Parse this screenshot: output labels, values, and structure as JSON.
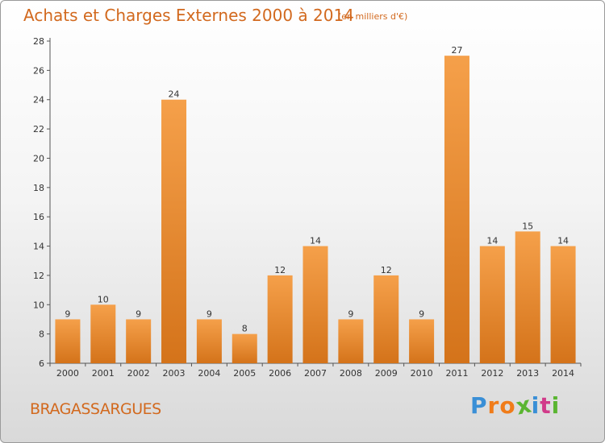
{
  "header": {
    "title": "Achats et Charges Externes 2000 à 2014",
    "subtitle": "(en milliers d'€)"
  },
  "footer": {
    "city": "BRAGASSARGUES",
    "logo_letters": [
      "P",
      "r",
      "o",
      "x",
      "i",
      "t",
      "i"
    ]
  },
  "colors": {
    "bar_light": "#f5a04a",
    "bar_dark": "#d4731a",
    "accent": "#d2691e",
    "logo": [
      "#3a8fd6",
      "#f07c1a",
      "#f07c1a",
      "#5ab531",
      "#3a8fd6",
      "#d13b8a",
      "#5ab531"
    ]
  },
  "chart_data": {
    "type": "bar",
    "title": "Achats et Charges Externes 2000 à 2014",
    "subtitle": "(en milliers d'€)",
    "categories": [
      "2000",
      "2001",
      "2002",
      "2003",
      "2004",
      "2005",
      "2006",
      "2007",
      "2008",
      "2009",
      "2010",
      "2011",
      "2012",
      "2013",
      "2014"
    ],
    "values": [
      9,
      10,
      9,
      24,
      9,
      8,
      12,
      14,
      9,
      12,
      9,
      27,
      14,
      15,
      14
    ],
    "data_labels": [
      "9",
      "10",
      "9",
      "24",
      "9",
      "8",
      "12",
      "14",
      "9",
      "12",
      "9",
      "27",
      "14",
      "15",
      "14"
    ],
    "ylim": [
      6,
      28
    ],
    "yticks": [
      6,
      8,
      10,
      12,
      14,
      16,
      18,
      20,
      22,
      24,
      26,
      28
    ],
    "xlabel": "",
    "ylabel": "",
    "grid": false,
    "legend": "none"
  }
}
